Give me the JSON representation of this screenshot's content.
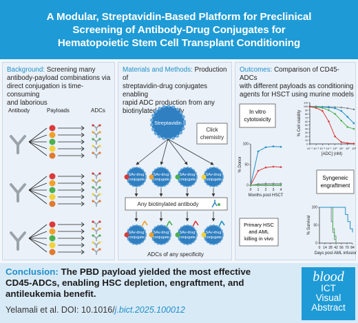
{
  "title": {
    "line1": "A Modular, Streptavidin-Based Platform for Preclinical",
    "line2": "Screening of Antibody-Drug Conjugates for",
    "line3": "Hematopoietic Stem Cell Transplant Conditioning"
  },
  "background": {
    "heading": "Background:",
    "line1": " Screening many",
    "line2": "antibody-payload combinations via",
    "line3": "direct conjugation is time-consuming",
    "line4": "and laborious",
    "labels": {
      "antibody": "Antibody",
      "payloads": "Payloads",
      "adcs": "ADCs"
    },
    "payload_colors": [
      "#d93a3a",
      "#f0a02a",
      "#4caf50",
      "#f2d23a",
      "#e07a30"
    ]
  },
  "methods": {
    "heading": "Materials and Methods:",
    "line1": " Production of",
    "line2": "streptavidin-drug conjugates enabling",
    "line3": "rapid ADC production from any",
    "line4": "biotinylated antibody",
    "streptavidin": "Streptavidin",
    "click1": "Click",
    "click2": "chemistry",
    "sa1": "SAv-drug",
    "sa2": "conjugate",
    "any_ab": "Any biotinylated antibody",
    "adcs_any": "ADCs of any specificity"
  },
  "outcomes": {
    "heading": "Outcomes:",
    "line1": " Comparison of CD45-ADCs",
    "line2": "with different payloads as conditioning",
    "line3": "agents for HSCT using murine models",
    "invitro1": "In vitro",
    "invitro2": "cytotoxicity",
    "syn1": "Syngeneic",
    "syn2": "engraftment",
    "prim1": "Primary HSC",
    "prim2": "and AML",
    "prim3": "killing in vivo"
  },
  "chart_data": [
    {
      "type": "line",
      "xlabel": "[ADC] (nM)",
      "ylabel": "% Cell viability",
      "yticks": [
        "0",
        "10",
        "20",
        "30",
        "40",
        "50",
        "60",
        "70",
        "80",
        "90",
        "100",
        "110"
      ],
      "xticks": [
        "10⁻⁴",
        "10⁻³",
        "10⁻²",
        "10⁻¹",
        "10⁰",
        "10¹",
        "10²",
        "10³"
      ],
      "xlim": [
        -4,
        3
      ],
      "ylim": [
        0,
        110
      ],
      "series": [
        {
          "color": "#7f8a94",
          "x": [
            -4,
            -3,
            -2,
            -1,
            0,
            1,
            2,
            3
          ],
          "y": [
            100,
            100,
            99,
            99,
            98,
            97,
            95,
            92
          ]
        },
        {
          "color": "#1e8fc8",
          "x": [
            -4,
            -3,
            -2,
            -1,
            0,
            1,
            2,
            3
          ],
          "y": [
            100,
            99,
            98,
            97,
            95,
            88,
            72,
            55
          ]
        },
        {
          "color": "#4caf50",
          "x": [
            -4,
            -3,
            -2,
            -1,
            0,
            1,
            2,
            3
          ],
          "y": [
            99,
            98,
            96,
            90,
            80,
            62,
            45,
            40
          ]
        },
        {
          "color": "#d93a3a",
          "x": [
            -4,
            -3,
            -2,
            -1,
            0,
            1,
            2,
            3
          ],
          "y": [
            99,
            96,
            88,
            60,
            20,
            5,
            2,
            1
          ]
        }
      ]
    },
    {
      "type": "line",
      "xlabel": "Months post HSCT",
      "ylabel": "% Donor",
      "xticks": [
        "0",
        "1",
        "2",
        "3",
        "4"
      ],
      "yticks": [
        "0",
        "50",
        "100"
      ],
      "xlim": [
        0,
        4
      ],
      "ylim": [
        0,
        100
      ],
      "series": [
        {
          "color": "#1e8fc8",
          "x": [
            0,
            1,
            2,
            3,
            4
          ],
          "y": [
            0,
            82,
            92,
            94,
            93
          ]
        },
        {
          "color": "#d93a3a",
          "x": [
            0,
            1,
            2,
            3,
            4
          ],
          "y": [
            0,
            35,
            43,
            45,
            44
          ]
        },
        {
          "color": "#7f8a94",
          "x": [
            0,
            1,
            2,
            3,
            4
          ],
          "y": [
            0,
            3,
            4,
            4,
            4
          ]
        },
        {
          "color": "#4caf50",
          "x": [
            0,
            1,
            2,
            3,
            4
          ],
          "y": [
            0,
            1,
            1,
            1,
            1
          ]
        }
      ]
    },
    {
      "type": "line",
      "xlabel": "Days post AML infusion",
      "ylabel": "% Survival",
      "xticks": [
        "0",
        "14",
        "28",
        "42",
        "56",
        "70",
        "84"
      ],
      "yticks": [
        "0",
        "50",
        "100"
      ],
      "xlim": [
        0,
        84
      ],
      "ylim": [
        0,
        100
      ],
      "series": [
        {
          "color": "#7f8a94",
          "x": [
            0,
            28,
            30,
            34,
            38,
            42
          ],
          "y": [
            100,
            100,
            60,
            30,
            10,
            0
          ]
        },
        {
          "color": "#4caf50",
          "x": [
            0,
            30,
            34,
            38,
            42
          ],
          "y": [
            100,
            100,
            40,
            20,
            0
          ]
        },
        {
          "color": "#1e8fc8",
          "x": [
            0,
            60,
            66,
            72,
            78,
            84
          ],
          "y": [
            100,
            100,
            80,
            60,
            40,
            30
          ]
        }
      ]
    }
  ],
  "conclusion": {
    "heading": "Conclusion:",
    "line1": " The PBD payload yielded the most effective",
    "line2": "CD45-ADCs, enabling HSC depletion, engraftment, and",
    "line3": "antileukemia benefit."
  },
  "citation": {
    "prefix": "Yelamali et al. DOI: 10.1016/",
    "highlight": "j.bict.2025.100012"
  },
  "logo": {
    "l1": "blood",
    "l2": "ICT",
    "l3": "Visual",
    "l4": "Abstract"
  },
  "colors": {
    "brand": "#1e9bd6",
    "accent_text": "#1e8fc8",
    "antibody": "#9aa3ab",
    "sa_node": "#2f7fc1"
  }
}
